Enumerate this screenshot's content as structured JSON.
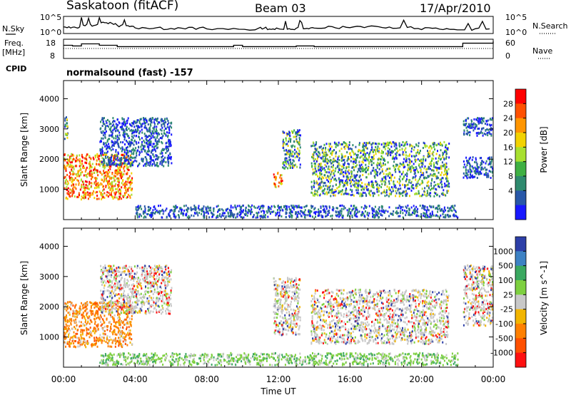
{
  "header": {
    "station": "Saskatoon (fitACF)",
    "beam": "Beam 03",
    "date": "17/Apr/2010"
  },
  "noise_panel": {
    "left_label": "N.Sky",
    "right_label": "N.Search",
    "tick_top": "10^5",
    "tick_bottom": "10^0"
  },
  "freq_panel": {
    "label_line1": "Freq.",
    "label_line2": "[MHz]",
    "left_ticks": [
      "18",
      "8"
    ],
    "right_ticks": [
      "60",
      "0"
    ],
    "right_label": "Nave"
  },
  "cpid": {
    "label": "CPID",
    "value": "normalsound (fast) -157"
  },
  "chart_data": [
    {
      "type": "heatmap",
      "name": "power",
      "ylabel": "Slant Range [km]",
      "ylim": [
        0,
        4600
      ],
      "yticks": [
        "1000",
        "2000",
        "3000",
        "4000"
      ],
      "xlim_hours": [
        0,
        24
      ],
      "colorbar": {
        "label": "Power [dB]",
        "ticks": [
          "28",
          "24",
          "20",
          "16",
          "12",
          "8",
          "4"
        ],
        "colors": [
          "#ff0000",
          "#ff5000",
          "#ff9500",
          "#f2d200",
          "#a8e030",
          "#3fb043",
          "#2e8a6e",
          "#2857a8",
          "#1818ff"
        ]
      },
      "echo_regions": [
        {
          "t0": 0.0,
          "t1": 0.2,
          "r0": 2600,
          "r1": 3500,
          "level": "mid"
        },
        {
          "t0": 0.0,
          "t1": 3.8,
          "r0": 700,
          "r1": 2200,
          "level": "high"
        },
        {
          "t0": 2.0,
          "t1": 6.0,
          "r0": 1800,
          "r1": 3400,
          "level": "low"
        },
        {
          "t0": 11.7,
          "t1": 12.2,
          "r0": 1100,
          "r1": 1600,
          "level": "high"
        },
        {
          "t0": 12.2,
          "t1": 13.2,
          "r0": 1700,
          "r1": 3000,
          "level": "mid"
        },
        {
          "t0": 13.8,
          "t1": 21.5,
          "r0": 800,
          "r1": 2600,
          "level": "mid"
        },
        {
          "t0": 22.3,
          "t1": 24.0,
          "r0": 2800,
          "r1": 3400,
          "level": "low"
        },
        {
          "t0": 22.3,
          "t1": 24.0,
          "r0": 1400,
          "r1": 2100,
          "level": "low"
        },
        {
          "t0": 4.0,
          "t1": 22.0,
          "r0": 100,
          "r1": 500,
          "level": "low"
        }
      ]
    },
    {
      "type": "heatmap",
      "name": "velocity",
      "ylabel": "Slant Range [km]",
      "ylim": [
        0,
        4600
      ],
      "yticks": [
        "1000",
        "2000",
        "3000",
        "4000"
      ],
      "xlim_hours": [
        0,
        24
      ],
      "xticks": [
        "00:00",
        "04:00",
        "08:00",
        "12:00",
        "16:00",
        "20:00",
        "00:00"
      ],
      "xlabel": "Time UT",
      "colorbar": {
        "label": "Velocity [m s^-1]",
        "ticks": [
          "1000",
          "500",
          "100",
          "25",
          "-25",
          "-100",
          "-500",
          "-1000"
        ],
        "colors": [
          "#2d3fa8",
          "#3d82c4",
          "#3aa860",
          "#7ed040",
          "#c8c8c8",
          "#f2b500",
          "#ff8000",
          "#ff5000",
          "#ff1010"
        ]
      },
      "echo_regions": [
        {
          "t0": 0.0,
          "t1": 3.8,
          "r0": 700,
          "r1": 2200,
          "level": "orange"
        },
        {
          "t0": 2.0,
          "t1": 6.0,
          "r0": 1800,
          "r1": 3400,
          "level": "gray"
        },
        {
          "t0": 11.7,
          "t1": 13.2,
          "r0": 1100,
          "r1": 3000,
          "level": "gray"
        },
        {
          "t0": 13.8,
          "t1": 21.5,
          "r0": 800,
          "r1": 2600,
          "level": "gray"
        },
        {
          "t0": 22.3,
          "t1": 24.0,
          "r0": 1400,
          "r1": 3400,
          "level": "gray"
        },
        {
          "t0": 2.0,
          "t1": 22.0,
          "r0": 100,
          "r1": 500,
          "level": "green"
        }
      ]
    }
  ],
  "nsky_profile": [
    [
      0,
      0.35
    ],
    [
      1,
      0.5
    ],
    [
      2,
      0.6
    ],
    [
      3,
      0.45
    ],
    [
      4,
      0.3
    ],
    [
      6,
      0.3
    ],
    [
      8,
      0.25
    ],
    [
      11,
      0.3
    ],
    [
      12,
      0.3
    ],
    [
      13,
      0.3
    ],
    [
      14,
      0.35
    ],
    [
      16,
      0.4
    ],
    [
      18,
      0.35
    ],
    [
      20,
      0.3
    ],
    [
      22,
      0.25
    ],
    [
      24,
      0.22
    ]
  ],
  "freq_profile": [
    [
      0,
      0.85
    ],
    [
      0.5,
      0.8
    ],
    [
      1,
      0.95
    ],
    [
      2,
      0.85
    ],
    [
      3,
      0.75
    ],
    [
      9.5,
      0.85
    ],
    [
      10,
      0.75
    ],
    [
      13,
      0.8
    ],
    [
      14,
      0.75
    ],
    [
      22.3,
      1.4
    ],
    [
      24,
      1.4
    ]
  ],
  "nave_level": 0.65
}
